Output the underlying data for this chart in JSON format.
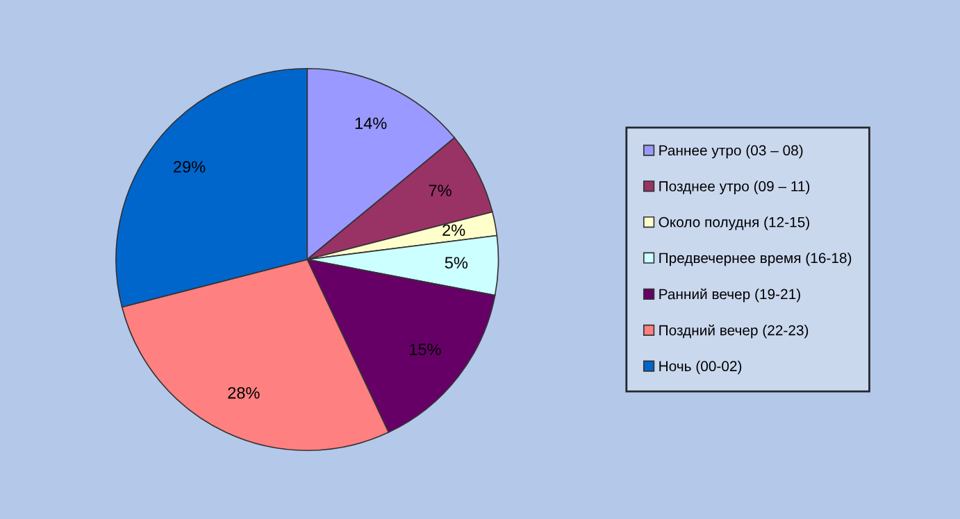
{
  "chart_data": {
    "type": "pie",
    "categories": [
      "Раннее утро (03 – 08)",
      "Позднее утро (09 – 11)",
      "Около полудня (12-15)",
      "Предвечернее время (16-18)",
      "Ранний вечер (19-21)",
      "Поздний вечер (22-23)",
      "Ночь (00-02)"
    ],
    "values": [
      14,
      7,
      2,
      5,
      15,
      28,
      29
    ],
    "value_labels": [
      "14%",
      "7%",
      "2%",
      "5%",
      "15%",
      "28%",
      "29%"
    ],
    "colors": [
      "#9999ff",
      "#993366",
      "#ffffcc",
      "#ccffff",
      "#660066",
      "#ff8080",
      "#0066cc"
    ],
    "legend": "right"
  }
}
